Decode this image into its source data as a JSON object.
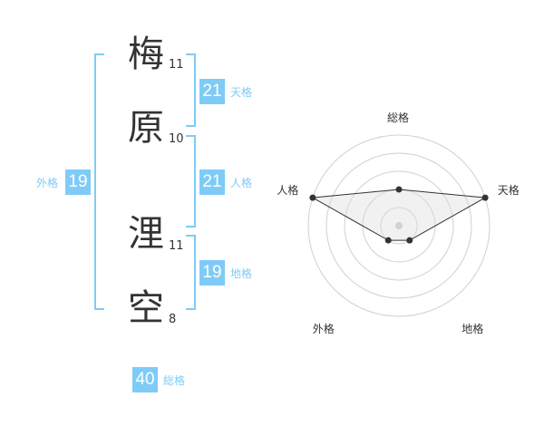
{
  "name": [
    {
      "char": "梅",
      "strokes": "11"
    },
    {
      "char": "原",
      "strokes": "10"
    },
    {
      "char": "浬",
      "strokes": "11"
    },
    {
      "char": "空",
      "strokes": "8"
    }
  ],
  "fortunes": {
    "tenkaku": {
      "value": "21",
      "label": "天格"
    },
    "jinkaku": {
      "value": "21",
      "label": "人格"
    },
    "chikaku": {
      "value": "19",
      "label": "地格"
    },
    "gaikaku": {
      "value": "19",
      "label": "外格"
    },
    "soukaku": {
      "value": "40",
      "label": "総格"
    }
  },
  "accent_color": "#7fcbf7",
  "chart_data": {
    "type": "radar",
    "axes": [
      "総格",
      "天格",
      "地格",
      "外格",
      "人格"
    ],
    "values": [
      2,
      5,
      1,
      1,
      5
    ],
    "range": [
      0,
      5
    ],
    "rings": 5
  }
}
